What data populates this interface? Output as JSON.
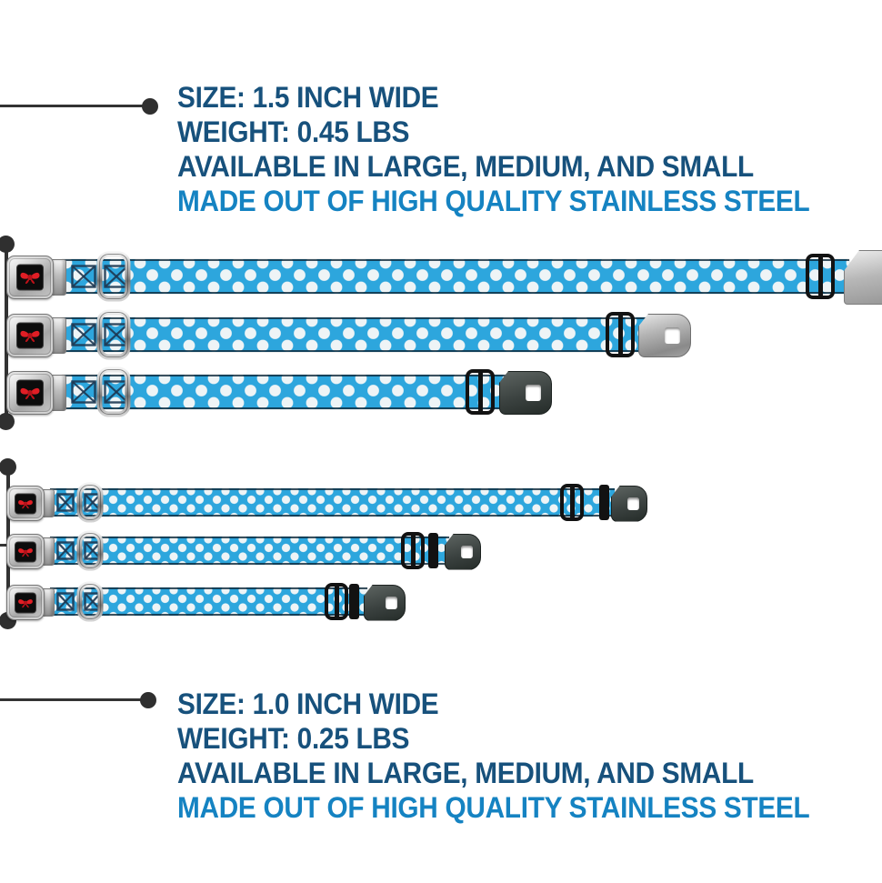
{
  "spec_top": {
    "size": "SIZE: 1.5 INCH WIDE",
    "weight": "WEIGHT: 0.45 LBS",
    "availability": "AVAILABLE IN LARGE, MEDIUM, AND SMALL",
    "material": "MADE OUT OF HIGH QUALITY STAINLESS STEEL"
  },
  "spec_bottom": {
    "size": "SIZE: 1.0 INCH WIDE",
    "weight": "WEIGHT: 0.25 LBS",
    "availability": "AVAILABLE IN LARGE, MEDIUM, AND SMALL",
    "material": "MADE OUT OF HIGH QUALITY STAINLESS STEEL"
  },
  "colors": {
    "spec_navy": "#17517C",
    "spec_bright_blue": "#1583C2",
    "webbing_blue": "#2DA6DD",
    "polka_dot_white": "#EEF4F6",
    "bow_red": "#E01E25",
    "callout_gray": "#333333"
  }
}
